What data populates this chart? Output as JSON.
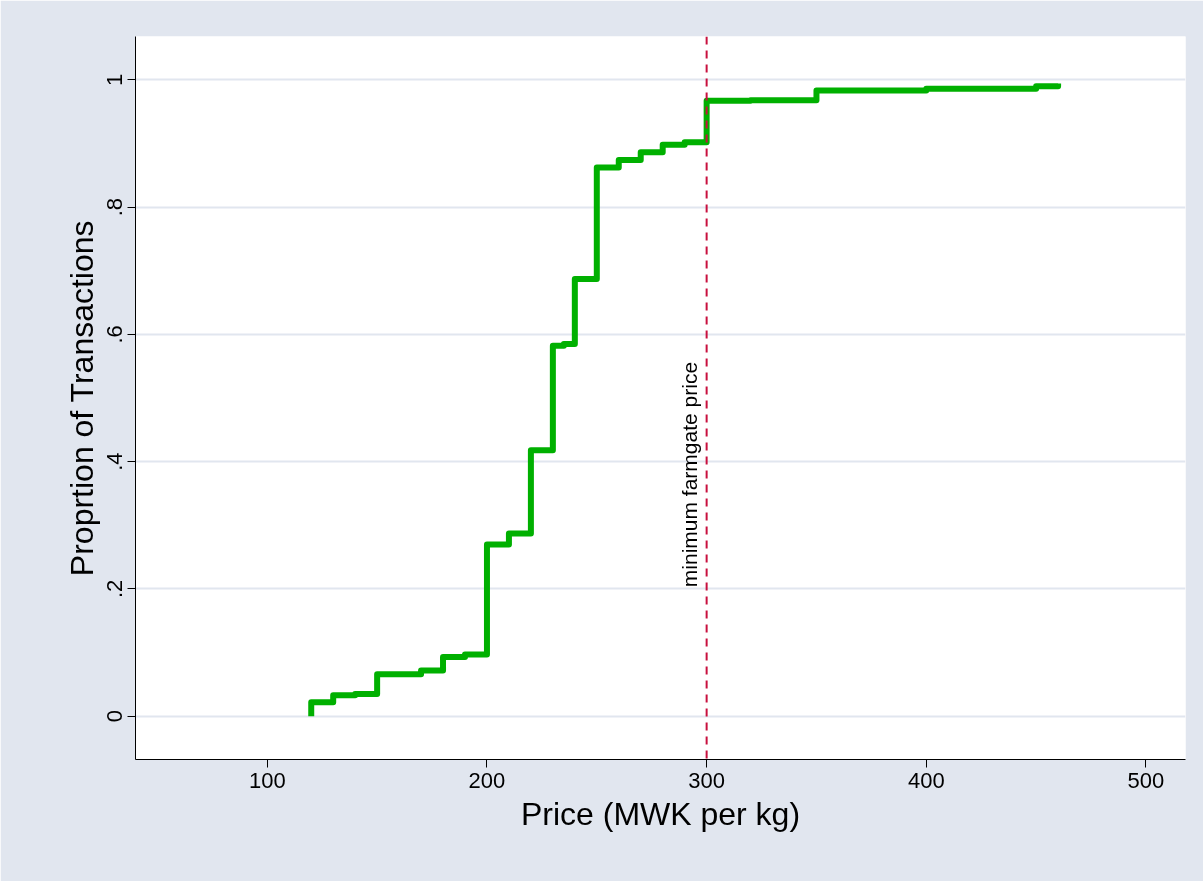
{
  "chart_data": {
    "type": "step",
    "xlabel": "Price (MWK per kg)",
    "ylabel": "Proprtion of Transactions",
    "xlim": [
      40,
      518
    ],
    "ylim": [
      -0.068,
      1.068
    ],
    "xticks": [
      100,
      200,
      300,
      400,
      500
    ],
    "yticks": [
      0,
      {
        "value": 0.2,
        "label": ".2"
      },
      {
        "value": 0.4,
        "label": ".4"
      },
      {
        "value": 0.6,
        "label": ".6"
      },
      {
        "value": 0.8,
        "label": ".8"
      },
      1
    ],
    "grid": "y",
    "marker": "none",
    "line_style": "solid",
    "series": [
      {
        "color": "#00b000",
        "x": [
          120,
          120,
          130,
          140,
          150,
          170,
          180,
          190,
          200,
          210,
          220,
          230,
          235,
          240,
          250,
          260,
          270,
          280,
          290,
          300,
          320,
          350,
          400,
          450,
          460
        ],
        "values": [
          0.0,
          0.022,
          0.033,
          0.035,
          0.066,
          0.072,
          0.093,
          0.097,
          0.27,
          0.287,
          0.418,
          0.582,
          0.585,
          0.687,
          0.862,
          0.874,
          0.886,
          0.898,
          0.902,
          0.967,
          0.968,
          0.983,
          0.986,
          0.99,
          0.994
        ]
      }
    ],
    "ref_lines": [
      {
        "axis": "x",
        "value": 300,
        "label": "minimum farmgate price",
        "color": "#c8103e",
        "line_style": "dashed"
      }
    ]
  }
}
